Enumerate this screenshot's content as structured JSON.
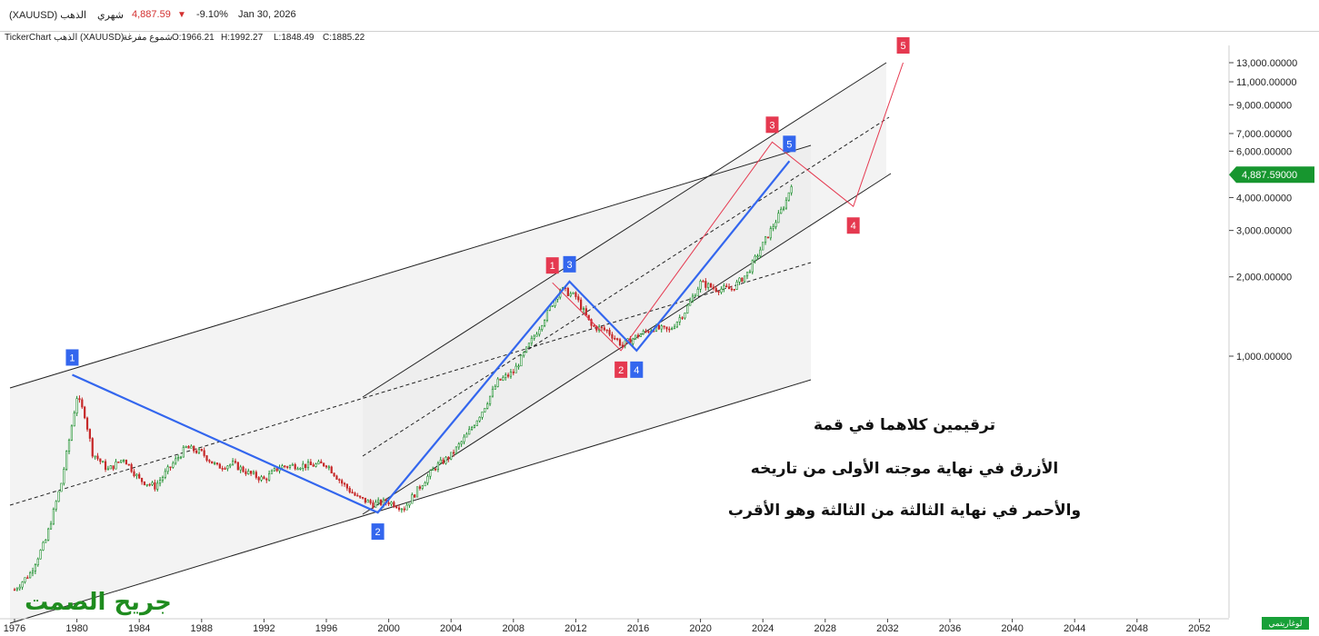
{
  "header": {
    "symbol": "الذهب (XAUUSD)",
    "period": "شهري",
    "price": "4,887.59",
    "change": "-9.10%",
    "date": "Jan 30, 2026",
    "down_color": "#d32f2f"
  },
  "info": {
    "title": "TickerChart الذهب (XAUUSD)",
    "style": "شموع مفرغة",
    "open": "O:1966.21",
    "high": "H:1992.27",
    "low": "L:1848.49",
    "close": "C:1885.22"
  },
  "scale_button": "لوغاريتمي",
  "watermark": "جريح الصمت",
  "annotations": [
    "ترقيمين كلاهما في قمة",
    "الأزرق في نهاية موجته الأولى من تاريخه",
    "والأحمر في نهاية الثالثة من الثالثة وهو الأقرب"
  ],
  "chart_data": {
    "type": "line",
    "scale": "log",
    "x_ticks": [
      "1976",
      "1980",
      "1984",
      "1988",
      "1992",
      "1996",
      "2000",
      "2004",
      "2008",
      "2012",
      "2016",
      "2020",
      "2024",
      "2028",
      "2032",
      "2036",
      "2040",
      "2044",
      "2048",
      "2052"
    ],
    "y_ticks": [
      "13,000.00000",
      "11,000.00000",
      "9,000.00000",
      "7,000.00000",
      "6,000.00000",
      "4,000.00000",
      "3,000.00000",
      "2,000.00000",
      "1,000.00000"
    ],
    "y_tick_values": [
      13000,
      11000,
      9000,
      7000,
      6000,
      4000,
      3000,
      2000,
      1000
    ],
    "last_price_label": "4,887.59000",
    "last_price": 4887.59,
    "price_series": [
      {
        "x": 1976.0,
        "y": 130
      },
      {
        "x": 1977.0,
        "y": 150
      },
      {
        "x": 1978.0,
        "y": 200
      },
      {
        "x": 1979.0,
        "y": 330
      },
      {
        "x": 1980.0,
        "y": 700
      },
      {
        "x": 1980.5,
        "y": 600
      },
      {
        "x": 1981.0,
        "y": 430
      },
      {
        "x": 1982.0,
        "y": 370
      },
      {
        "x": 1983.0,
        "y": 410
      },
      {
        "x": 1984.0,
        "y": 340
      },
      {
        "x": 1985.0,
        "y": 320
      },
      {
        "x": 1986.0,
        "y": 380
      },
      {
        "x": 1987.0,
        "y": 450
      },
      {
        "x": 1988.0,
        "y": 430
      },
      {
        "x": 1989.0,
        "y": 380
      },
      {
        "x": 1990.0,
        "y": 390
      },
      {
        "x": 1991.0,
        "y": 360
      },
      {
        "x": 1992.0,
        "y": 340
      },
      {
        "x": 1993.0,
        "y": 380
      },
      {
        "x": 1994.0,
        "y": 385
      },
      {
        "x": 1995.0,
        "y": 385
      },
      {
        "x": 1996.0,
        "y": 390
      },
      {
        "x": 1997.0,
        "y": 330
      },
      {
        "x": 1998.0,
        "y": 290
      },
      {
        "x": 1999.0,
        "y": 275
      },
      {
        "x": 2000.0,
        "y": 280
      },
      {
        "x": 2001.0,
        "y": 265
      },
      {
        "x": 2002.0,
        "y": 320
      },
      {
        "x": 2003.0,
        "y": 380
      },
      {
        "x": 2004.0,
        "y": 420
      },
      {
        "x": 2005.0,
        "y": 500
      },
      {
        "x": 2006.0,
        "y": 620
      },
      {
        "x": 2007.0,
        "y": 800
      },
      {
        "x": 2008.0,
        "y": 870
      },
      {
        "x": 2009.0,
        "y": 1100
      },
      {
        "x": 2010.0,
        "y": 1400
      },
      {
        "x": 2011.0,
        "y": 1800
      },
      {
        "x": 2012.0,
        "y": 1680
      },
      {
        "x": 2013.0,
        "y": 1300
      },
      {
        "x": 2014.0,
        "y": 1250
      },
      {
        "x": 2015.0,
        "y": 1100
      },
      {
        "x": 2016.0,
        "y": 1200
      },
      {
        "x": 2017.0,
        "y": 1280
      },
      {
        "x": 2018.0,
        "y": 1250
      },
      {
        "x": 2019.0,
        "y": 1480
      },
      {
        "x": 2020.0,
        "y": 1900
      },
      {
        "x": 2021.0,
        "y": 1800
      },
      {
        "x": 2022.0,
        "y": 1800
      },
      {
        "x": 2023.0,
        "y": 2060
      },
      {
        "x": 2024.0,
        "y": 2650
      },
      {
        "x": 2025.0,
        "y": 3400
      },
      {
        "x": 2025.5,
        "y": 3900
      },
      {
        "x": 2026.0,
        "y": 4887
      }
    ],
    "blue_wave": {
      "color": "#3366ee",
      "labels": [
        "1",
        "2",
        "3",
        "4",
        "5"
      ],
      "points": [
        {
          "x": 1979.7,
          "y": 850
        },
        {
          "x": 1999.3,
          "y": 255
        },
        {
          "x": 2011.6,
          "y": 1920
        },
        {
          "x": 2015.9,
          "y": 1050
        },
        {
          "x": 2025.7,
          "y": 5500
        }
      ]
    },
    "red_wave": {
      "color": "#e53950",
      "labels": [
        "1",
        "2",
        "3",
        "4",
        "5"
      ],
      "points": [
        {
          "x": 2010.5,
          "y": 1900
        },
        {
          "x": 2014.9,
          "y": 1050
        },
        {
          "x": 2024.6,
          "y": 6500
        },
        {
          "x": 2029.8,
          "y": 3700
        },
        {
          "x": 2033.0,
          "y": 13000
        }
      ]
    }
  }
}
